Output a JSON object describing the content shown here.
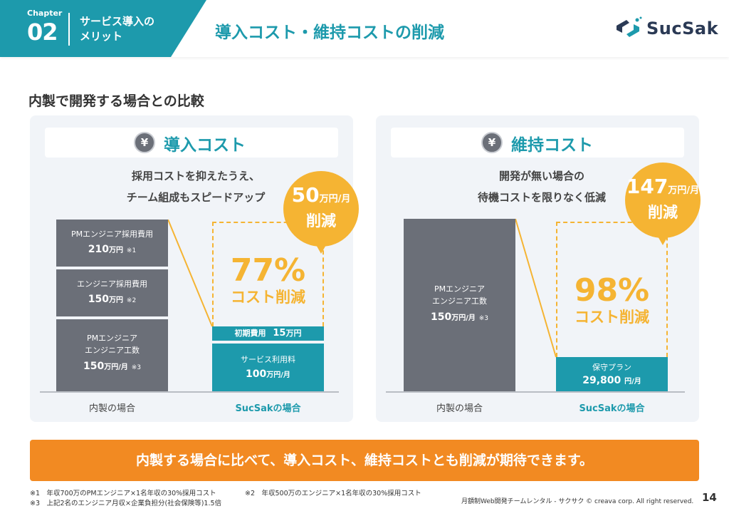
{
  "header": {
    "chapter_label": "Chapter",
    "chapter_number": "02",
    "chapter_title": "サービス導入の\nメリット",
    "page_title": "導入コスト・維持コストの削減",
    "logo_text": "SucSak"
  },
  "section_title": "内製で開発する場合との比較",
  "left_panel": {
    "title": "導入コスト",
    "icon": "yen-icon",
    "subtitle": "採用コストを抑えたうえ、\nチーム組成もスピードアップ",
    "bubble_value": "50",
    "bubble_unit": "万円/月",
    "bubble_label": "削減",
    "percent": "77%",
    "percent_label": "コスト削減",
    "inhouse_bars": [
      {
        "label": "PMエンジニア採用費用",
        "value": "210",
        "unit": "万円",
        "note": "※1"
      },
      {
        "label": "エンジニア採用費用",
        "value": "150",
        "unit": "万円",
        "note": "※2"
      },
      {
        "label": "PMエンジニア\nエンジニア工数",
        "value": "150",
        "unit": "万円/月",
        "note": "※3"
      }
    ],
    "sucsak_bars": [
      {
        "label": "初期費用",
        "value": "15",
        "unit": "万円"
      },
      {
        "label": "サービス利用料",
        "value": "100",
        "unit": "万円/月"
      }
    ],
    "axis_inhouse": "内製の場合",
    "axis_sucsak": "SucSakの場合"
  },
  "right_panel": {
    "title": "維持コスト",
    "icon": "yen-icon",
    "subtitle": "開発が無い場合の\n待機コストを限りなく低減",
    "bubble_value": "147",
    "bubble_unit": "万円/月",
    "bubble_label": "削減",
    "percent": "98%",
    "percent_label": "コスト削減",
    "inhouse_bar": {
      "label": "PMエンジニア\nエンジニア工数",
      "value": "150",
      "unit": "万円/月",
      "note": "※3"
    },
    "sucsak_bar": {
      "label": "保守プラン",
      "value": "29,800",
      "unit": "円/月"
    },
    "axis_inhouse": "内製の場合",
    "axis_sucsak": "SucSakの場合"
  },
  "banner": "内製する場合に比べて、導入コスト、維持コストとも削減が期待できます。",
  "footnotes": {
    "n1": "※1　年収700万のPMエンジニア×1名年収の30%採用コスト",
    "n2": "※2　年収500万のエンジニア×1名年収の30%採用コスト",
    "n3": "※3　上記2名のエンジニア月収×企業負担分(社会保険等)1.5倍"
  },
  "copyright": "月額制Web開発チームレンタル - サクサク © creava corp. All right reserved.",
  "page_number": "14",
  "colors": {
    "teal": "#1d9aac",
    "orange": "#f28a22",
    "yellow": "#f5b433",
    "gray_bar": "#6b6f78"
  }
}
